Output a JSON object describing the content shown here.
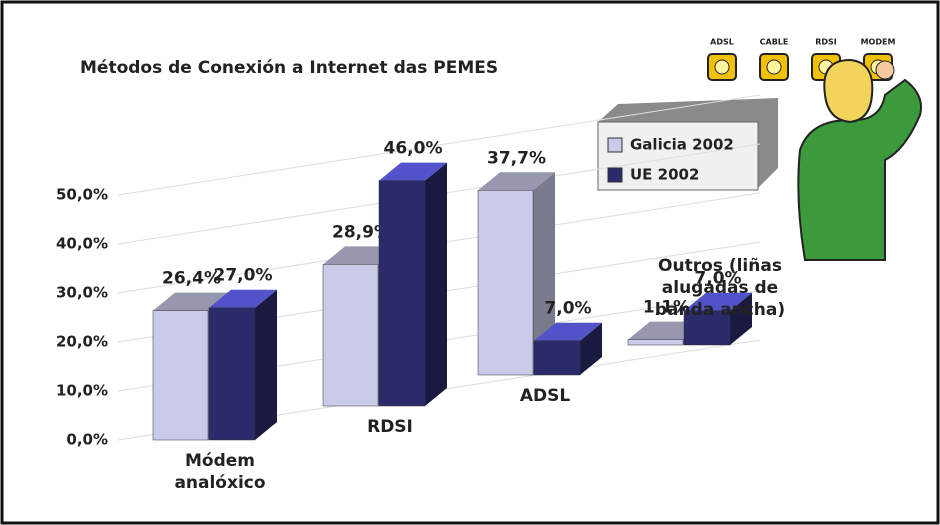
{
  "chart_data": {
    "type": "bar3d",
    "title": "Métodos de Conexión a Internet das PEMES",
    "categories": [
      "Módem analóxico",
      "RDSI",
      "ADSL",
      "Outros (liñas alugadas de banda ancha)"
    ],
    "series": [
      {
        "name": "Galicia 2002",
        "color": "#c9cbe9",
        "values": [
          26.4,
          28.9,
          37.7,
          1.1
        ],
        "value_labels": [
          "26,4%",
          "28,9%",
          "37,7%",
          "1,1%"
        ]
      },
      {
        "name": "UE 2002",
        "color": "#2b2b6b",
        "values": [
          27.0,
          46.0,
          7.0,
          7.0
        ],
        "value_labels": [
          "27,0%",
          "46,0%",
          "7,0%",
          "7,0%"
        ]
      }
    ],
    "ylim": [
      0,
      50
    ],
    "yticks": [
      {
        "value": 0,
        "label": "0,0%"
      },
      {
        "value": 10,
        "label": "10,0%"
      },
      {
        "value": 20,
        "label": "20,0%"
      },
      {
        "value": 30,
        "label": "30,0%"
      },
      {
        "value": 40,
        "label": "40,0%"
      },
      {
        "value": 50,
        "label": "50,0%"
      }
    ],
    "grid": true,
    "annotations": [
      "ADSL",
      "CABLE",
      "RDSI",
      "MODEM"
    ]
  }
}
